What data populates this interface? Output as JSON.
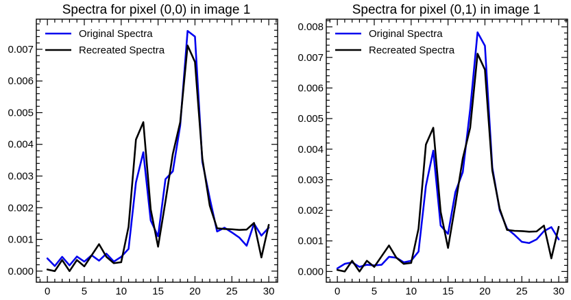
{
  "colors": {
    "original": "#0000ee",
    "recreated": "#000000"
  },
  "chart_data": [
    {
      "type": "line",
      "title": "Spectra for pixel (0,0) in image 1",
      "xlim": [
        -1.5,
        31.2
      ],
      "ylim": [
        -0.00035,
        0.00795
      ],
      "x_ticks": [
        0,
        5,
        10,
        15,
        20,
        25,
        30
      ],
      "y_ticks": [
        0.0,
        0.001,
        0.002,
        0.003,
        0.004,
        0.005,
        0.006,
        0.007
      ],
      "y_tick_labels": [
        "0.000",
        "0.001",
        "0.002",
        "0.003",
        "0.004",
        "0.005",
        "0.006",
        "0.007"
      ],
      "legend_position": "top-left",
      "grid": false,
      "x": [
        0,
        1,
        2,
        3,
        4,
        5,
        6,
        7,
        8,
        9,
        10,
        11,
        12,
        13,
        14,
        15,
        16,
        17,
        18,
        19,
        20,
        21,
        22,
        23,
        24,
        25,
        26,
        27,
        28,
        29,
        30
      ],
      "series": [
        {
          "name": "Original Spectra",
          "color_key": "original",
          "values": [
            0.0004,
            0.00016,
            0.00045,
            0.00018,
            0.00046,
            0.0003,
            0.0005,
            0.00033,
            0.00055,
            0.0003,
            0.00045,
            0.0007,
            0.0028,
            0.00375,
            0.0016,
            0.0011,
            0.0029,
            0.00315,
            0.0046,
            0.00758,
            0.0074,
            0.00345,
            0.0023,
            0.00125,
            0.00137,
            0.00122,
            0.00106,
            0.0008,
            0.0015,
            0.00112,
            0.00137
          ]
        },
        {
          "name": "Recreated Spectra",
          "color_key": "recreated",
          "values": [
            5e-05,
            0.0,
            0.00035,
            0.0,
            0.00035,
            0.00015,
            0.0005,
            0.00085,
            0.00045,
            0.00025,
            0.00028,
            0.0014,
            0.00415,
            0.0047,
            0.00195,
            0.00077,
            0.0022,
            0.0037,
            0.0047,
            0.00712,
            0.0066,
            0.00355,
            0.00207,
            0.00135,
            0.00133,
            0.00132,
            0.0013,
            0.00131,
            0.00152,
            0.00043,
            0.00146
          ]
        }
      ]
    },
    {
      "type": "line",
      "title": "Spectra for pixel (0,1) in image 1",
      "xlim": [
        -1.5,
        31.2
      ],
      "ylim": [
        -0.00035,
        0.00825
      ],
      "x_ticks": [
        0,
        5,
        10,
        15,
        20,
        25,
        30
      ],
      "y_ticks": [
        0.0,
        0.001,
        0.002,
        0.003,
        0.004,
        0.005,
        0.006,
        0.007,
        0.008
      ],
      "y_tick_labels": [
        "0.000",
        "0.001",
        "0.002",
        "0.003",
        "0.004",
        "0.005",
        "0.006",
        "0.007",
        "0.008"
      ],
      "legend_position": "top-left",
      "grid": false,
      "x": [
        0,
        1,
        2,
        3,
        4,
        5,
        6,
        7,
        8,
        9,
        10,
        11,
        12,
        13,
        14,
        15,
        16,
        17,
        18,
        19,
        20,
        21,
        22,
        23,
        24,
        25,
        26,
        27,
        28,
        29,
        30
      ],
      "series": [
        {
          "name": "Original Spectra",
          "color_key": "original",
          "values": [
            0.0001,
            0.00025,
            0.0003,
            0.00015,
            0.00022,
            0.0002,
            0.00022,
            0.00048,
            0.00045,
            0.0003,
            0.00035,
            0.00065,
            0.0028,
            0.00395,
            0.0015,
            0.00123,
            0.0026,
            0.00325,
            0.0053,
            0.00782,
            0.00738,
            0.0034,
            0.002,
            0.0014,
            0.0012,
            0.00097,
            0.00093,
            0.00105,
            0.00132,
            0.00145,
            0.00105
          ]
        },
        {
          "name": "Recreated Spectra",
          "color_key": "recreated",
          "values": [
            5e-05,
            0.0,
            0.00035,
            0.0,
            0.00035,
            0.00015,
            0.0005,
            0.00085,
            0.00045,
            0.00025,
            0.00028,
            0.0014,
            0.00415,
            0.0047,
            0.00195,
            0.00077,
            0.0022,
            0.0037,
            0.0047,
            0.00712,
            0.0066,
            0.0033,
            0.00205,
            0.00136,
            0.00133,
            0.00132,
            0.0013,
            0.00131,
            0.0015,
            0.00043,
            0.00146
          ]
        }
      ]
    }
  ]
}
